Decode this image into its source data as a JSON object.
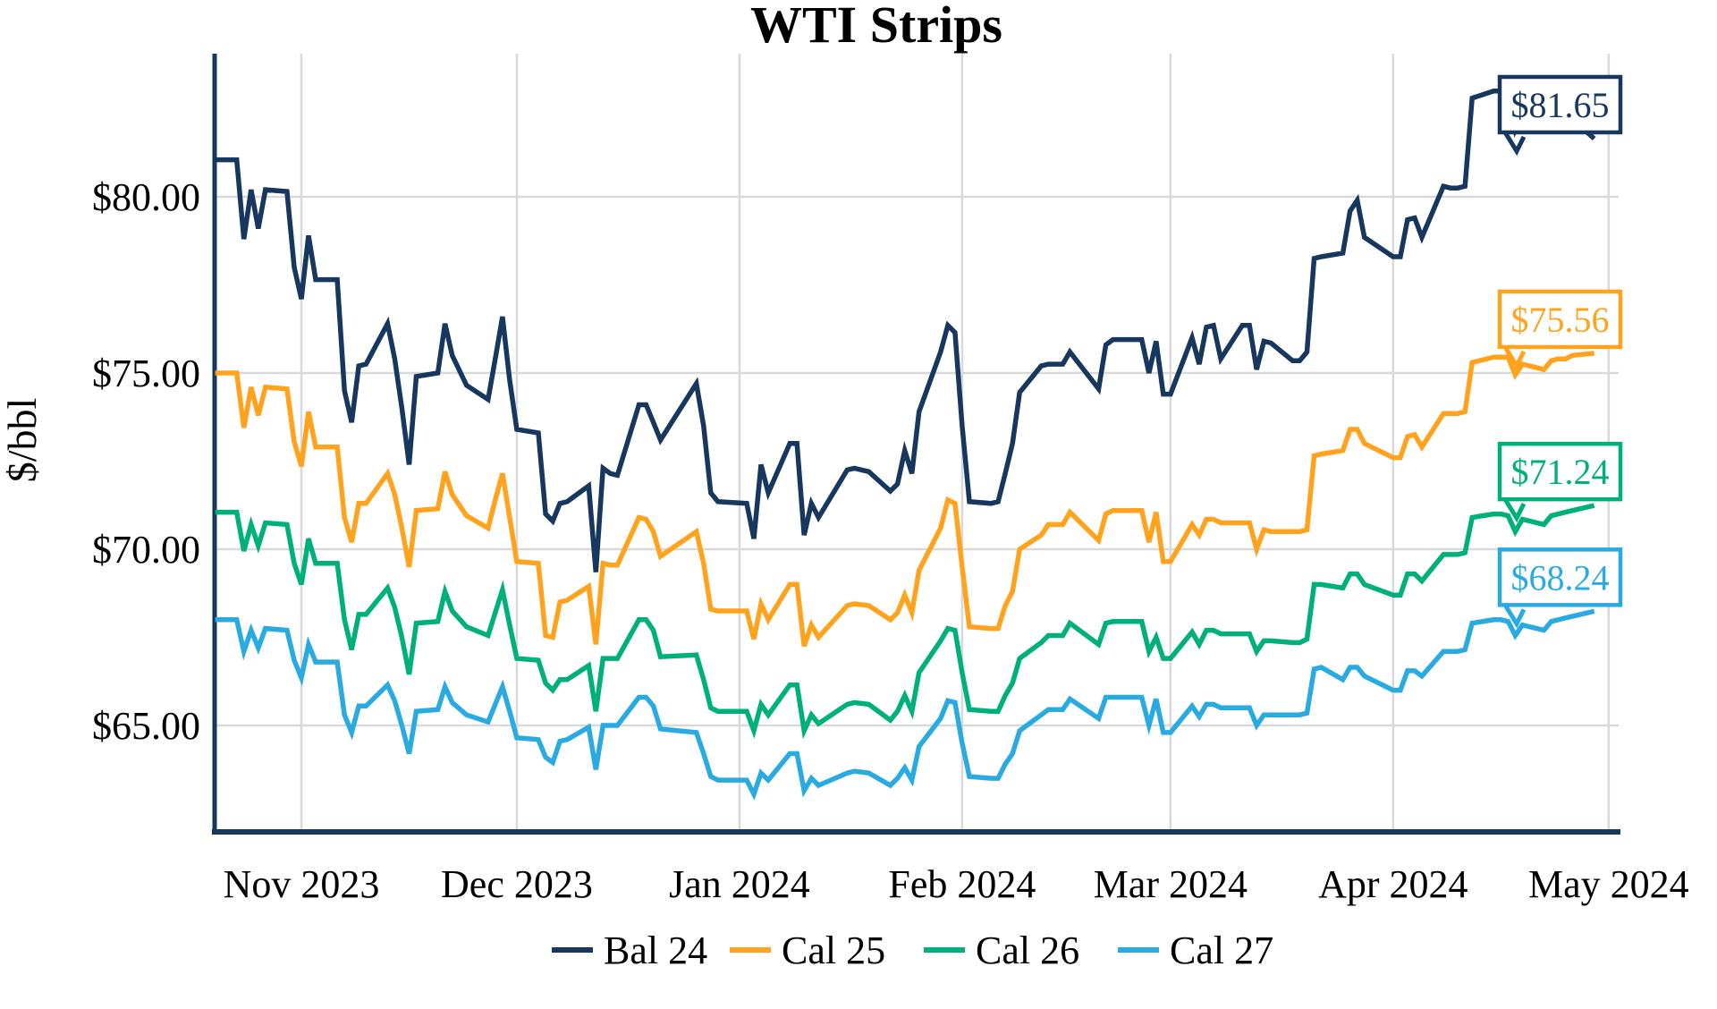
{
  "title": "WTI Strips",
  "y_axis": {
    "label": "$/bbl",
    "ticks": [
      "$80.00",
      "$75.00",
      "$70.00",
      "$65.00"
    ],
    "tick_values": [
      80,
      75,
      70,
      65
    ]
  },
  "x_axis": {
    "tick_labels": [
      "Nov 2023",
      "Dec 2023",
      "Jan 2024",
      "Feb 2024",
      "Mar 2024",
      "Apr 2024",
      "May 2024"
    ],
    "tick_dates": [
      "2023-11-01",
      "2023-12-01",
      "2024-01-01",
      "2024-02-01",
      "2024-03-01",
      "2024-04-01",
      "2024-05-01"
    ]
  },
  "legend": [
    {
      "label": "Bal 24",
      "color": "#17375E"
    },
    {
      "label": "Cal 25",
      "color": "#FFA31E"
    },
    {
      "label": "Cal 26",
      "color": "#00B07A"
    },
    {
      "label": "Cal 27",
      "color": "#29ABE2"
    }
  ],
  "end_labels": [
    "$81.65",
    "$75.56",
    "$71.24",
    "$68.24"
  ],
  "colors": {
    "grid": "#D9D9D9",
    "axis": "#17375E",
    "background": "#FFFFFF",
    "text": "#000000"
  },
  "chart_data": {
    "type": "line",
    "title": "WTI Strips",
    "xlabel": "",
    "ylabel": "$/bbl",
    "ylim": [
      61.9,
      84.1
    ],
    "grid": true,
    "legend_position": "bottom",
    "x": [
      "2023-10-20",
      "2023-10-23",
      "2023-10-24",
      "2023-10-25",
      "2023-10-26",
      "2023-10-27",
      "2023-10-30",
      "2023-10-31",
      "2023-11-01",
      "2023-11-02",
      "2023-11-03",
      "2023-11-06",
      "2023-11-07",
      "2023-11-08",
      "2023-11-09",
      "2023-11-10",
      "2023-11-13",
      "2023-11-14",
      "2023-11-15",
      "2023-11-16",
      "2023-11-17",
      "2023-11-20",
      "2023-11-21",
      "2023-11-22",
      "2023-11-24",
      "2023-11-27",
      "2023-11-28",
      "2023-11-29",
      "2023-11-30",
      "2023-12-01",
      "2023-12-04",
      "2023-12-05",
      "2023-12-06",
      "2023-12-07",
      "2023-12-08",
      "2023-12-11",
      "2023-12-12",
      "2023-12-13",
      "2023-12-14",
      "2023-12-15",
      "2023-12-18",
      "2023-12-19",
      "2023-12-20",
      "2023-12-21",
      "2023-12-26",
      "2023-12-27",
      "2023-12-28",
      "2023-12-29",
      "2024-01-02",
      "2024-01-03",
      "2024-01-04",
      "2024-01-05",
      "2024-01-08",
      "2024-01-09",
      "2024-01-10",
      "2024-01-11",
      "2024-01-12",
      "2024-01-16",
      "2024-01-17",
      "2024-01-19",
      "2024-01-22",
      "2024-01-23",
      "2024-01-24",
      "2024-01-25",
      "2024-01-26",
      "2024-01-29",
      "2024-01-30",
      "2024-01-31",
      "2024-02-01",
      "2024-02-02",
      "2024-02-05",
      "2024-02-06",
      "2024-02-07",
      "2024-02-08",
      "2024-02-09",
      "2024-02-12",
      "2024-02-13",
      "2024-02-14",
      "2024-02-15",
      "2024-02-16",
      "2024-02-20",
      "2024-02-21",
      "2024-02-22",
      "2024-02-23",
      "2024-02-26",
      "2024-02-27",
      "2024-02-28",
      "2024-02-29",
      "2024-03-01",
      "2024-03-04",
      "2024-03-05",
      "2024-03-06",
      "2024-03-07",
      "2024-03-08",
      "2024-03-11",
      "2024-03-12",
      "2024-03-13",
      "2024-03-14",
      "2024-03-15",
      "2024-03-18",
      "2024-03-19",
      "2024-03-20",
      "2024-03-21",
      "2024-03-22",
      "2024-03-25",
      "2024-03-26",
      "2024-03-27",
      "2024-03-28",
      "2024-04-01",
      "2024-04-02",
      "2024-04-03",
      "2024-04-04",
      "2024-04-05",
      "2024-04-08",
      "2024-04-09",
      "2024-04-10",
      "2024-04-11",
      "2024-04-12",
      "2024-04-15",
      "2024-04-16",
      "2024-04-17",
      "2024-04-18",
      "2024-04-19",
      "2024-04-22",
      "2024-04-23",
      "2024-04-24",
      "2024-04-25",
      "2024-04-26",
      "2024-04-29"
    ],
    "series": [
      {
        "name": "Bal 24",
        "color": "#17375E",
        "end_label": "$81.65",
        "values": [
          81.05,
          81.05,
          78.8,
          80.2,
          79.1,
          80.2,
          80.15,
          78.0,
          77.1,
          78.9,
          77.65,
          77.65,
          74.5,
          73.6,
          75.2,
          75.25,
          76.4,
          75.4,
          74.0,
          72.4,
          74.9,
          75.0,
          76.4,
          75.5,
          74.65,
          74.25,
          75.4,
          76.6,
          74.8,
          73.4,
          73.3,
          71.0,
          70.8,
          71.3,
          71.35,
          71.8,
          69.35,
          72.3,
          72.15,
          72.1,
          74.1,
          74.1,
          73.6,
          73.1,
          74.7,
          73.5,
          71.6,
          71.35,
          71.3,
          70.3,
          72.4,
          71.6,
          73.0,
          73.0,
          70.4,
          71.3,
          70.9,
          72.25,
          72.3,
          72.2,
          71.65,
          71.85,
          72.8,
          72.15,
          73.9,
          75.6,
          76.35,
          76.15,
          73.5,
          71.35,
          71.3,
          71.35,
          72.15,
          73.0,
          74.45,
          75.2,
          75.25,
          75.25,
          75.25,
          75.6,
          74.55,
          75.8,
          75.95,
          75.95,
          75.95,
          75.0,
          75.9,
          74.4,
          74.4,
          76.0,
          75.25,
          76.3,
          76.35,
          75.4,
          76.35,
          76.35,
          75.1,
          75.9,
          75.85,
          75.35,
          75.35,
          75.6,
          78.25,
          78.3,
          78.4,
          79.6,
          79.9,
          78.85,
          78.3,
          78.3,
          79.35,
          79.4,
          78.85,
          80.3,
          80.25,
          80.25,
          80.3,
          82.8,
          83.0,
          83.0,
          82.95,
          81.9,
          82.35,
          82.0,
          82.45,
          82.4,
          82.45,
          82.2,
          81.65
        ]
      },
      {
        "name": "Cal 25",
        "color": "#FFA31E",
        "end_label": "$75.56",
        "values": [
          75.0,
          75.0,
          73.45,
          74.6,
          73.8,
          74.6,
          74.55,
          73.05,
          72.35,
          73.9,
          72.9,
          72.9,
          70.9,
          70.2,
          71.3,
          71.3,
          72.15,
          71.55,
          70.6,
          69.5,
          71.1,
          71.15,
          72.2,
          71.55,
          70.95,
          70.6,
          71.4,
          72.15,
          70.9,
          69.65,
          69.6,
          67.55,
          67.5,
          68.5,
          68.55,
          68.95,
          67.3,
          69.6,
          69.55,
          69.55,
          70.9,
          70.85,
          70.5,
          69.8,
          70.5,
          69.6,
          68.3,
          68.25,
          68.25,
          67.45,
          68.45,
          68.0,
          69.0,
          69.0,
          67.25,
          67.85,
          67.5,
          68.4,
          68.45,
          68.4,
          68.0,
          68.2,
          68.7,
          68.2,
          69.4,
          70.6,
          71.4,
          71.3,
          69.5,
          67.8,
          67.75,
          67.75,
          68.4,
          68.8,
          70.0,
          70.4,
          70.7,
          70.7,
          70.7,
          71.05,
          70.25,
          71.0,
          71.1,
          71.1,
          71.1,
          70.2,
          71.05,
          69.65,
          69.65,
          70.7,
          70.4,
          70.85,
          70.85,
          70.75,
          70.75,
          70.75,
          70.0,
          70.55,
          70.5,
          70.5,
          70.5,
          70.55,
          72.65,
          72.7,
          72.8,
          73.4,
          73.4,
          73.0,
          72.6,
          72.6,
          73.2,
          73.25,
          72.9,
          73.85,
          73.85,
          73.85,
          73.9,
          75.3,
          75.45,
          75.45,
          75.45,
          74.95,
          75.25,
          75.1,
          75.35,
          75.4,
          75.4,
          75.5,
          75.56
        ]
      },
      {
        "name": "Cal 26",
        "color": "#00B07A",
        "end_label": "$71.24",
        "values": [
          71.05,
          71.05,
          69.95,
          70.7,
          70.1,
          70.75,
          70.7,
          69.6,
          69.0,
          70.3,
          69.6,
          69.6,
          68.0,
          67.15,
          68.15,
          68.15,
          68.9,
          68.35,
          67.5,
          66.45,
          67.9,
          67.95,
          68.8,
          68.25,
          67.8,
          67.55,
          68.2,
          68.85,
          67.85,
          66.9,
          66.85,
          66.2,
          66.0,
          66.3,
          66.3,
          66.7,
          65.4,
          66.9,
          66.9,
          66.9,
          68.0,
          68.0,
          67.7,
          66.95,
          67.0,
          66.3,
          65.5,
          65.4,
          65.4,
          64.85,
          65.6,
          65.3,
          66.15,
          66.15,
          64.85,
          65.3,
          65.05,
          65.6,
          65.65,
          65.6,
          65.15,
          65.4,
          65.85,
          65.4,
          66.5,
          67.4,
          67.75,
          67.7,
          66.5,
          65.45,
          65.4,
          65.4,
          65.85,
          66.2,
          66.9,
          67.35,
          67.55,
          67.55,
          67.55,
          67.9,
          67.3,
          67.9,
          67.95,
          67.95,
          67.95,
          67.1,
          67.5,
          66.9,
          66.9,
          67.65,
          67.3,
          67.7,
          67.7,
          67.6,
          67.6,
          67.6,
          67.1,
          67.4,
          67.4,
          67.35,
          67.35,
          67.45,
          69.0,
          69.0,
          68.9,
          69.3,
          69.3,
          69.0,
          68.7,
          68.7,
          69.3,
          69.3,
          69.1,
          69.85,
          69.85,
          69.85,
          69.9,
          70.9,
          71.0,
          71.0,
          70.95,
          70.5,
          70.85,
          70.7,
          70.95,
          71.0,
          71.05,
          71.1,
          71.24
        ]
      },
      {
        "name": "Cal 27",
        "color": "#29ABE2",
        "end_label": "$68.24",
        "values": [
          68.0,
          68.0,
          67.1,
          67.7,
          67.2,
          67.75,
          67.7,
          66.85,
          66.35,
          67.3,
          66.8,
          66.8,
          65.3,
          64.8,
          65.55,
          65.55,
          66.15,
          65.7,
          65.0,
          64.2,
          65.4,
          65.45,
          66.1,
          65.65,
          65.3,
          65.1,
          65.6,
          66.1,
          65.4,
          64.65,
          64.6,
          64.1,
          63.95,
          64.55,
          64.6,
          64.95,
          63.75,
          65.0,
          65.0,
          65.0,
          65.8,
          65.8,
          65.55,
          64.9,
          64.8,
          64.2,
          63.55,
          63.45,
          63.45,
          63.05,
          63.65,
          63.45,
          64.2,
          64.2,
          63.15,
          63.5,
          63.3,
          63.65,
          63.7,
          63.65,
          63.3,
          63.5,
          63.8,
          63.45,
          64.4,
          65.2,
          65.7,
          65.65,
          64.5,
          63.55,
          63.5,
          63.5,
          63.9,
          64.2,
          64.85,
          65.3,
          65.45,
          65.45,
          65.45,
          65.75,
          65.2,
          65.8,
          65.8,
          65.8,
          65.8,
          65.0,
          65.75,
          64.8,
          64.8,
          65.55,
          65.25,
          65.6,
          65.6,
          65.5,
          65.5,
          65.5,
          65.0,
          65.3,
          65.3,
          65.3,
          65.3,
          65.35,
          66.6,
          66.65,
          66.3,
          66.65,
          66.65,
          66.4,
          66.0,
          66.0,
          66.55,
          66.55,
          66.4,
          67.1,
          67.1,
          67.1,
          67.15,
          67.9,
          68.0,
          68.0,
          67.95,
          67.55,
          67.85,
          67.7,
          67.95,
          68.0,
          68.05,
          68.1,
          68.24
        ]
      }
    ]
  }
}
